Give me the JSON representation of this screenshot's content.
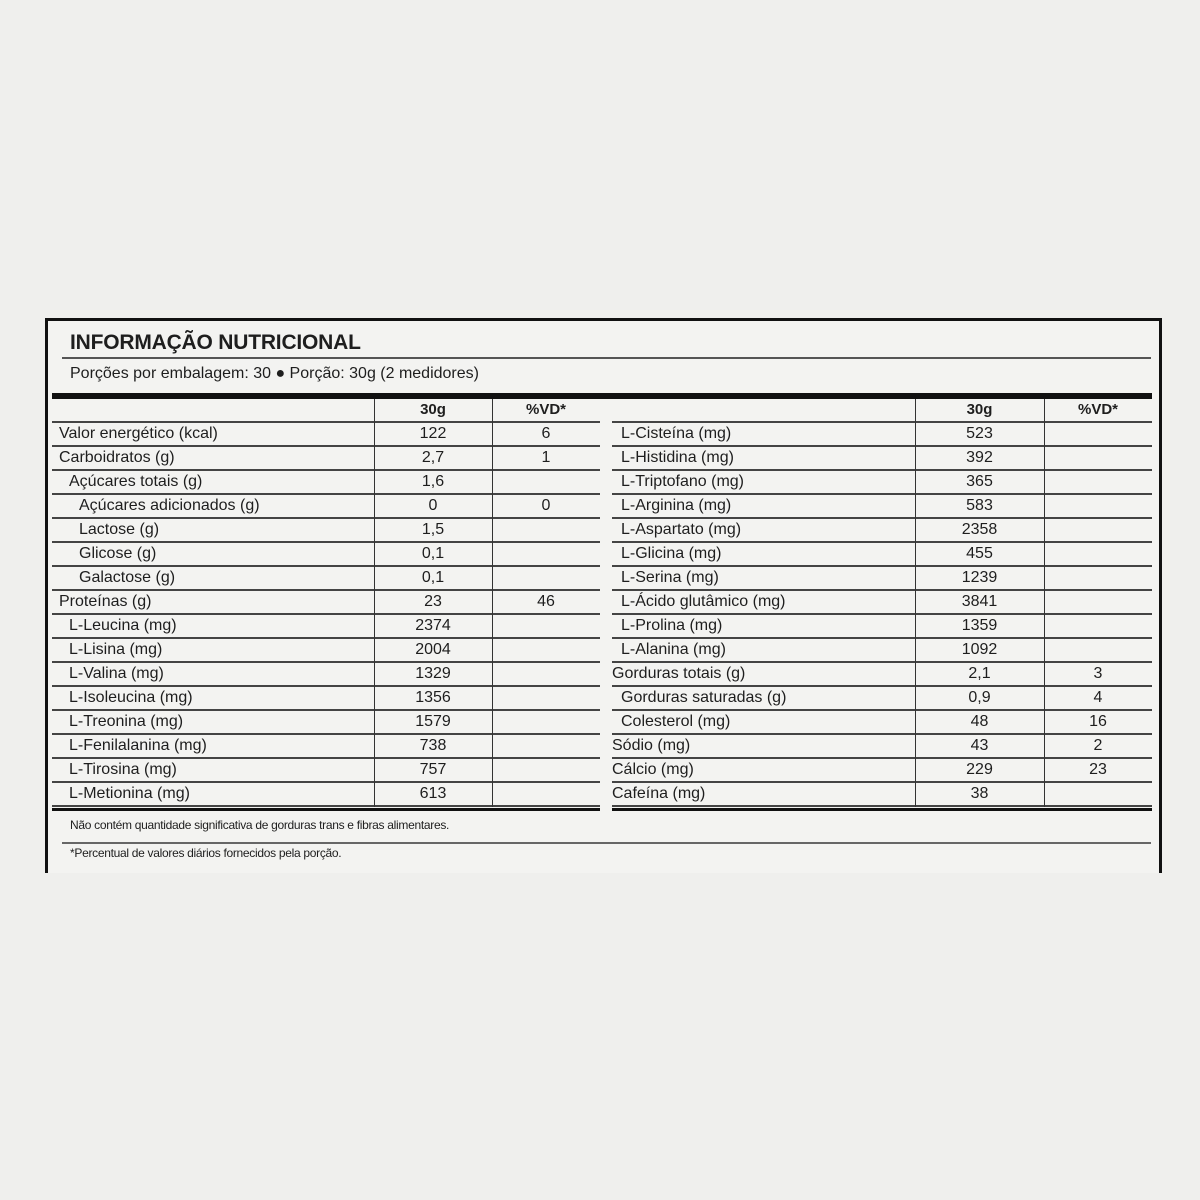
{
  "title": "INFORMAÇÃO NUTRICIONAL",
  "subtitle": "Porções por embalagem: 30  ● Porção: 30g (2 medidores)",
  "headers": {
    "amount": "30g",
    "vd": "%VD*"
  },
  "left_table": [
    {
      "name": "Valor energético (kcal)",
      "amount": "122",
      "vd": "6",
      "indent": 0
    },
    {
      "name": "Carboidratos (g)",
      "amount": "2,7",
      "vd": "1",
      "indent": 0
    },
    {
      "name": "Açúcares totais (g)",
      "amount": "1,6",
      "vd": "",
      "indent": 1
    },
    {
      "name": "Açúcares adicionados (g)",
      "amount": "0",
      "vd": "0",
      "indent": 2
    },
    {
      "name": "Lactose (g)",
      "amount": "1,5",
      "vd": "",
      "indent": 2
    },
    {
      "name": "Glicose (g)",
      "amount": "0,1",
      "vd": "",
      "indent": 2
    },
    {
      "name": "Galactose (g)",
      "amount": "0,1",
      "vd": "",
      "indent": 2
    },
    {
      "name": "Proteínas (g)",
      "amount": "23",
      "vd": "46",
      "indent": 0
    },
    {
      "name": "L-Leucina (mg)",
      "amount": "2374",
      "vd": "",
      "indent": 1
    },
    {
      "name": "L-Lisina (mg)",
      "amount": "2004",
      "vd": "",
      "indent": 1
    },
    {
      "name": "L-Valina (mg)",
      "amount": "1329",
      "vd": "",
      "indent": 1
    },
    {
      "name": "L-Isoleucina (mg)",
      "amount": "1356",
      "vd": "",
      "indent": 1
    },
    {
      "name": "L-Treonina (mg)",
      "amount": "1579",
      "vd": "",
      "indent": 1
    },
    {
      "name": "L-Fenilalanina (mg)",
      "amount": "738",
      "vd": "",
      "indent": 1
    },
    {
      "name": "L-Tirosina (mg)",
      "amount": "757",
      "vd": "",
      "indent": 1
    },
    {
      "name": "L-Metionina (mg)",
      "amount": "613",
      "vd": "",
      "indent": 1
    }
  ],
  "right_table": [
    {
      "name": "L-Cisteína (mg)",
      "amount": "523",
      "vd": "",
      "indent": 1
    },
    {
      "name": "L-Histidina (mg)",
      "amount": "392",
      "vd": "",
      "indent": 1
    },
    {
      "name": "L-Triptofano (mg)",
      "amount": "365",
      "vd": "",
      "indent": 1
    },
    {
      "name": "L-Arginina (mg)",
      "amount": "583",
      "vd": "",
      "indent": 1
    },
    {
      "name": "L-Aspartato (mg)",
      "amount": "2358",
      "vd": "",
      "indent": 1
    },
    {
      "name": "L-Glicina (mg)",
      "amount": "455",
      "vd": "",
      "indent": 1
    },
    {
      "name": "L-Serina (mg)",
      "amount": "1239",
      "vd": "",
      "indent": 1
    },
    {
      "name": "L-Ácido glutâmico (mg)",
      "amount": "3841",
      "vd": "",
      "indent": 1
    },
    {
      "name": "L-Prolina (mg)",
      "amount": "1359",
      "vd": "",
      "indent": 1
    },
    {
      "name": "L-Alanina (mg)",
      "amount": "1092",
      "vd": "",
      "indent": 1
    },
    {
      "name": "Gorduras totais (g)",
      "amount": "2,1",
      "vd": "3",
      "indent": 0
    },
    {
      "name": "Gorduras saturadas (g)",
      "amount": "0,9",
      "vd": "4",
      "indent": 1
    },
    {
      "name": "Colesterol (mg)",
      "amount": "48",
      "vd": "16",
      "indent": 1
    },
    {
      "name": "Sódio (mg)",
      "amount": "43",
      "vd": "2",
      "indent": 0
    },
    {
      "name": "Cálcio (mg)",
      "amount": "229",
      "vd": "23",
      "indent": 0
    },
    {
      "name": "Cafeína (mg)",
      "amount": "38",
      "vd": "",
      "indent": 0
    }
  ],
  "footnotes": {
    "trans": "Não contém quantidade significativa de gorduras trans e fibras alimentares.",
    "vd": "*Percentual de valores diários fornecidos pela porção."
  }
}
